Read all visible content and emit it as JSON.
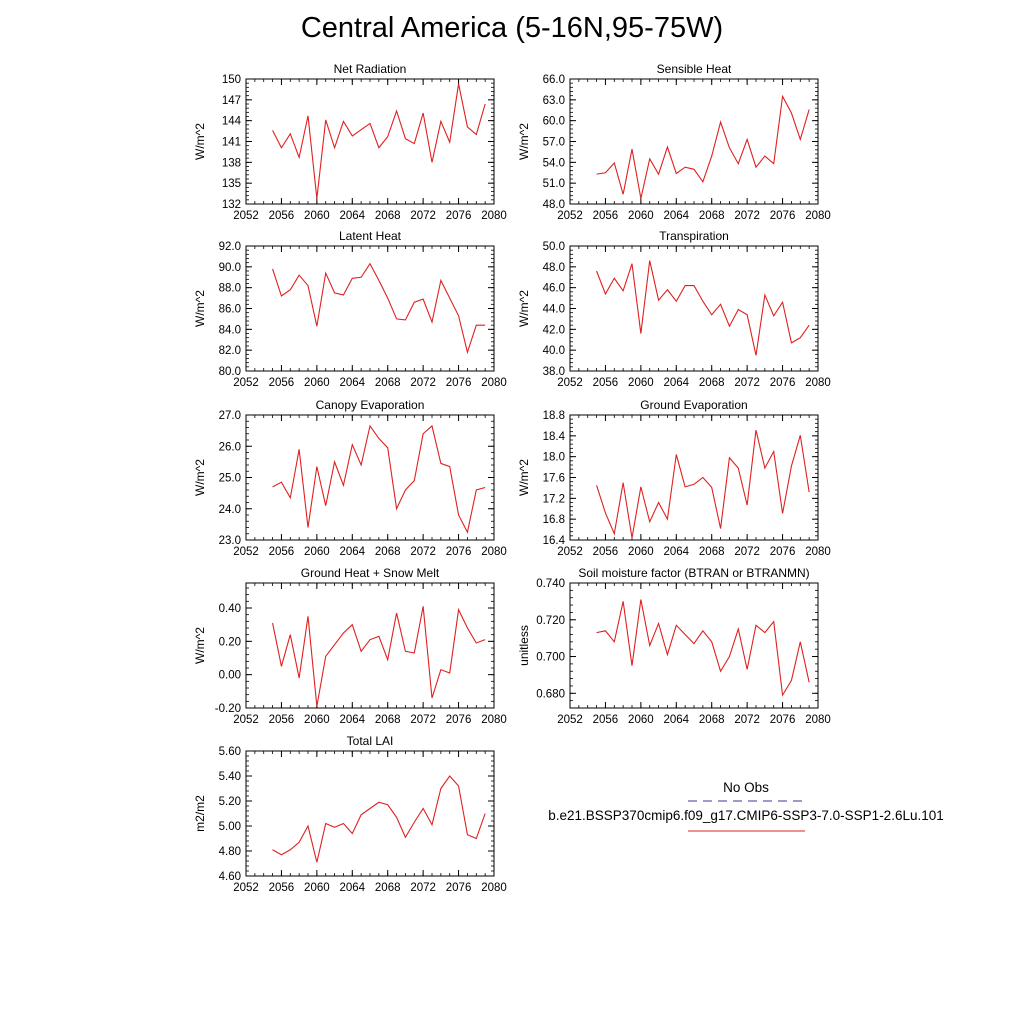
{
  "page_title": "Central America (5-16N,95-75W)",
  "legend": {
    "items": [
      {
        "label": "No Obs",
        "color": "#3a3a9a",
        "dash": true
      },
      {
        "label": "b.e21.BSSP370cmip6.f09_g17.CMIP6-SSP3-7.0-SSP1-2.6Lu.101",
        "color": "#e02020",
        "dash": false
      }
    ]
  },
  "chart_data": [
    {
      "id": "net-radiation",
      "type": "line",
      "title": "Net Radiation",
      "ylabel": "W/m^2",
      "xlim": [
        2052,
        2080
      ],
      "ylim": [
        132,
        150
      ],
      "xticks": [
        2052,
        2056,
        2060,
        2064,
        2068,
        2072,
        2076,
        2080
      ],
      "yticks": [
        "132",
        "135",
        "138",
        "141",
        "144",
        "147",
        "150"
      ],
      "series": [
        {
          "color": "#e02020",
          "x": [
            2055,
            2056,
            2057,
            2058,
            2059,
            2060,
            2061,
            2062,
            2063,
            2064,
            2065,
            2066,
            2067,
            2068,
            2069,
            2070,
            2071,
            2072,
            2073,
            2074,
            2075,
            2076,
            2077,
            2078,
            2079
          ],
          "y": [
            142.6,
            140.1,
            142.1,
            138.7,
            144.7,
            132.8,
            144.1,
            140.1,
            143.9,
            141.8,
            142.7,
            143.6,
            140.1,
            141.7,
            145.4,
            141.4,
            140.7,
            145.1,
            138.0,
            143.9,
            140.9,
            149.3,
            143.1,
            142.0,
            146.4
          ]
        }
      ]
    },
    {
      "id": "sensible-heat",
      "type": "line",
      "title": "Sensible Heat",
      "ylabel": "W/m^2",
      "xlim": [
        2052,
        2080
      ],
      "ylim": [
        48.0,
        66.0
      ],
      "xticks": [
        2052,
        2056,
        2060,
        2064,
        2068,
        2072,
        2076,
        2080
      ],
      "yticks": [
        "48.0",
        "51.0",
        "54.0",
        "57.0",
        "60.0",
        "63.0",
        "66.0"
      ],
      "series": [
        {
          "color": "#e02020",
          "x": [
            2055,
            2056,
            2057,
            2058,
            2059,
            2060,
            2061,
            2062,
            2063,
            2064,
            2065,
            2066,
            2067,
            2068,
            2069,
            2070,
            2071,
            2072,
            2073,
            2074,
            2075,
            2076,
            2077,
            2078,
            2079
          ],
          "y": [
            52.3,
            52.5,
            53.9,
            49.4,
            55.9,
            48.8,
            54.5,
            52.3,
            56.2,
            52.4,
            53.3,
            53.0,
            51.2,
            54.9,
            59.8,
            56.1,
            53.8,
            57.3,
            53.3,
            54.9,
            53.8,
            63.5,
            61.1,
            57.3,
            61.6
          ]
        }
      ]
    },
    {
      "id": "latent-heat",
      "type": "line",
      "title": "Latent Heat",
      "ylabel": "W/m^2",
      "xlim": [
        2052,
        2080
      ],
      "ylim": [
        80.0,
        92.0
      ],
      "xticks": [
        2052,
        2056,
        2060,
        2064,
        2068,
        2072,
        2076,
        2080
      ],
      "yticks": [
        "80.0",
        "82.0",
        "84.0",
        "86.0",
        "88.0",
        "90.0",
        "92.0"
      ],
      "series": [
        {
          "color": "#e02020",
          "x": [
            2055,
            2056,
            2057,
            2058,
            2059,
            2060,
            2061,
            2062,
            2063,
            2064,
            2065,
            2066,
            2067,
            2068,
            2069,
            2070,
            2071,
            2072,
            2073,
            2074,
            2075,
            2076,
            2077,
            2078,
            2079
          ],
          "y": [
            89.8,
            87.2,
            87.8,
            89.2,
            88.2,
            84.3,
            89.4,
            87.5,
            87.3,
            88.9,
            89.0,
            90.3,
            88.7,
            87.0,
            85.0,
            84.9,
            86.6,
            86.9,
            84.7,
            88.7,
            87.0,
            85.3,
            81.8,
            84.4,
            84.4
          ]
        }
      ]
    },
    {
      "id": "transpiration",
      "type": "line",
      "title": "Transpiration",
      "ylabel": "W/m^2",
      "xlim": [
        2052,
        2080
      ],
      "ylim": [
        38.0,
        50.0
      ],
      "xticks": [
        2052,
        2056,
        2060,
        2064,
        2068,
        2072,
        2076,
        2080
      ],
      "yticks": [
        "38.0",
        "40.0",
        "42.0",
        "44.0",
        "46.0",
        "48.0",
        "50.0"
      ],
      "series": [
        {
          "color": "#e02020",
          "x": [
            2055,
            2056,
            2057,
            2058,
            2059,
            2060,
            2061,
            2062,
            2063,
            2064,
            2065,
            2066,
            2067,
            2068,
            2069,
            2070,
            2071,
            2072,
            2073,
            2074,
            2075,
            2076,
            2077,
            2078,
            2079
          ],
          "y": [
            47.6,
            45.4,
            46.9,
            45.7,
            48.3,
            41.6,
            48.6,
            44.8,
            45.8,
            44.7,
            46.2,
            46.2,
            44.7,
            43.4,
            44.4,
            42.3,
            43.9,
            43.4,
            39.5,
            45.3,
            43.3,
            44.6,
            40.7,
            41.2,
            42.4
          ]
        }
      ]
    },
    {
      "id": "canopy-evaporation",
      "type": "line",
      "title": "Canopy Evaporation",
      "ylabel": "W/m^2",
      "xlim": [
        2052,
        2080
      ],
      "ylim": [
        23.0,
        27.0
      ],
      "xticks": [
        2052,
        2056,
        2060,
        2064,
        2068,
        2072,
        2076,
        2080
      ],
      "yticks": [
        "23.0",
        "24.0",
        "25.0",
        "26.0",
        "27.0"
      ],
      "series": [
        {
          "color": "#e02020",
          "x": [
            2055,
            2056,
            2057,
            2058,
            2059,
            2060,
            2061,
            2062,
            2063,
            2064,
            2065,
            2066,
            2067,
            2068,
            2069,
            2070,
            2071,
            2072,
            2073,
            2074,
            2075,
            2076,
            2077,
            2078,
            2079
          ],
          "y": [
            24.7,
            24.85,
            24.35,
            25.9,
            23.4,
            25.35,
            24.1,
            25.5,
            24.75,
            26.05,
            25.4,
            26.65,
            26.25,
            25.95,
            24.0,
            24.6,
            24.9,
            26.4,
            26.65,
            25.45,
            25.35,
            23.8,
            23.25,
            24.6,
            24.68
          ]
        }
      ]
    },
    {
      "id": "ground-evaporation",
      "type": "line",
      "title": "Ground Evaporation",
      "ylabel": "W/m^2",
      "xlim": [
        2052,
        2080
      ],
      "ylim": [
        16.4,
        18.8
      ],
      "xticks": [
        2052,
        2056,
        2060,
        2064,
        2068,
        2072,
        2076,
        2080
      ],
      "yticks": [
        "16.4",
        "16.8",
        "17.2",
        "17.6",
        "18.0",
        "18.4",
        "18.8"
      ],
      "series": [
        {
          "color": "#e02020",
          "x": [
            2055,
            2056,
            2057,
            2058,
            2059,
            2060,
            2061,
            2062,
            2063,
            2064,
            2065,
            2066,
            2067,
            2068,
            2069,
            2070,
            2071,
            2072,
            2073,
            2074,
            2075,
            2076,
            2077,
            2078,
            2079
          ],
          "y": [
            17.45,
            16.92,
            16.52,
            17.5,
            16.44,
            17.42,
            16.75,
            17.12,
            16.8,
            18.04,
            17.42,
            17.47,
            17.6,
            17.41,
            16.62,
            17.98,
            17.78,
            17.07,
            18.51,
            17.78,
            18.1,
            16.91,
            17.82,
            18.41,
            17.32
          ]
        }
      ]
    },
    {
      "id": "ground-heat-snow-melt",
      "type": "line",
      "title": "Ground Heat + Snow Melt",
      "ylabel": "W/m^2",
      "xlim": [
        2052,
        2080
      ],
      "ylim": [
        -0.2,
        0.55
      ],
      "xticks": [
        2052,
        2056,
        2060,
        2064,
        2068,
        2072,
        2076,
        2080
      ],
      "yticks": [
        "-0.20",
        "0.00",
        "0.20",
        "0.40"
      ],
      "series": [
        {
          "color": "#e02020",
          "x": [
            2055,
            2056,
            2057,
            2058,
            2059,
            2060,
            2061,
            2062,
            2063,
            2064,
            2065,
            2066,
            2067,
            2068,
            2069,
            2070,
            2071,
            2072,
            2073,
            2074,
            2075,
            2076,
            2077,
            2078,
            2079
          ],
          "y": [
            0.31,
            0.05,
            0.24,
            -0.02,
            0.35,
            -0.19,
            0.11,
            0.18,
            0.25,
            0.3,
            0.14,
            0.21,
            0.23,
            0.09,
            0.37,
            0.14,
            0.13,
            0.41,
            -0.14,
            0.03,
            0.01,
            0.39,
            0.28,
            0.19,
            0.21
          ]
        }
      ]
    },
    {
      "id": "soil-moisture-factor",
      "type": "line",
      "title": "Soil moisture factor (BTRAN or BTRANMN)",
      "ylabel": "unitless",
      "xlim": [
        2052,
        2080
      ],
      "ylim": [
        0.672,
        0.74
      ],
      "xticks": [
        2052,
        2056,
        2060,
        2064,
        2068,
        2072,
        2076,
        2080
      ],
      "yticks": [
        "0.680",
        "0.700",
        "0.720",
        "0.740"
      ],
      "series": [
        {
          "color": "#e02020",
          "x": [
            2055,
            2056,
            2057,
            2058,
            2059,
            2060,
            2061,
            2062,
            2063,
            2064,
            2065,
            2066,
            2067,
            2068,
            2069,
            2070,
            2071,
            2072,
            2073,
            2074,
            2075,
            2076,
            2077,
            2078,
            2079
          ],
          "y": [
            0.713,
            0.714,
            0.708,
            0.73,
            0.695,
            0.731,
            0.706,
            0.718,
            0.701,
            0.717,
            0.712,
            0.707,
            0.714,
            0.708,
            0.692,
            0.7,
            0.715,
            0.693,
            0.717,
            0.713,
            0.719,
            0.679,
            0.687,
            0.708,
            0.686
          ]
        }
      ]
    },
    {
      "id": "total-lai",
      "type": "line",
      "title": "Total LAI",
      "ylabel": "m2/m2",
      "xlim": [
        2052,
        2080
      ],
      "ylim": [
        4.6,
        5.6
      ],
      "xticks": [
        2052,
        2056,
        2060,
        2064,
        2068,
        2072,
        2076,
        2080
      ],
      "yticks": [
        "4.60",
        "4.80",
        "5.00",
        "5.20",
        "5.40",
        "5.60"
      ],
      "series": [
        {
          "color": "#e02020",
          "x": [
            2055,
            2056,
            2057,
            2058,
            2059,
            2060,
            2061,
            2062,
            2063,
            2064,
            2065,
            2066,
            2067,
            2068,
            2069,
            2070,
            2071,
            2072,
            2073,
            2074,
            2075,
            2076,
            2077,
            2078,
            2079
          ],
          "y": [
            4.81,
            4.77,
            4.81,
            4.87,
            5.0,
            4.71,
            5.02,
            4.99,
            5.02,
            4.94,
            5.09,
            5.14,
            5.19,
            5.17,
            5.07,
            4.91,
            5.03,
            5.14,
            5.01,
            5.3,
            5.4,
            5.32,
            4.93,
            4.9,
            5.1
          ]
        }
      ]
    }
  ]
}
